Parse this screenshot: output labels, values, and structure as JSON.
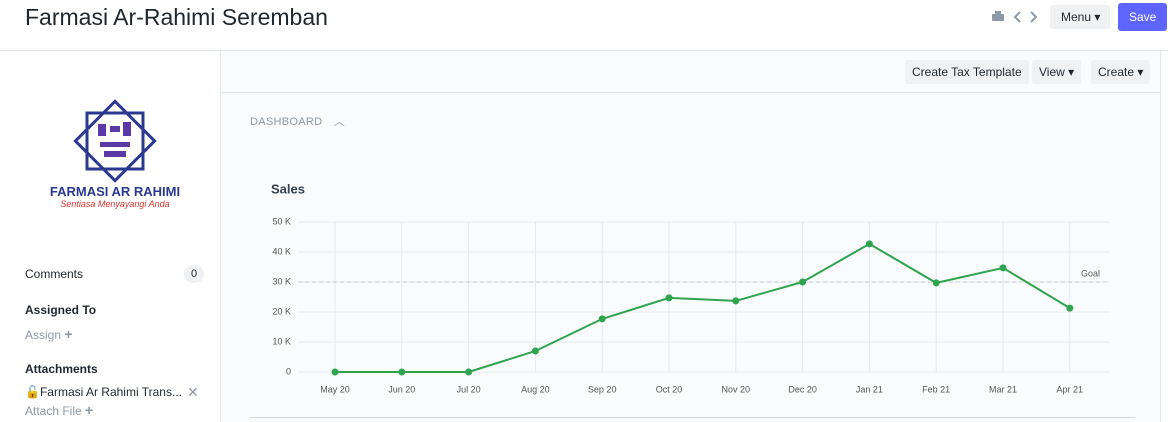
{
  "header": {
    "title": "Farmasi Ar-Rahimi Seremban",
    "menu_button": "Menu",
    "save_button": "Save"
  },
  "sidebar": {
    "logo_name": "FARMASI AR RAHIMI",
    "logo_tagline": "Sentiasa Menyayangi Anda",
    "comments_label": "Comments",
    "comments_count": 0,
    "assigned_label": "Assigned To",
    "assign_link": "Assign",
    "attachments_label": "Attachments",
    "attachment_file": "Farmasi Ar Rahimi Trans...",
    "attach_link": "Attach File"
  },
  "toolbar": {
    "create_tax_template": "Create Tax Template",
    "view": "View",
    "create": "Create"
  },
  "dashboard_label": "DASHBOARD",
  "chart_data": {
    "type": "line",
    "title": "Sales",
    "categories": [
      "May 20",
      "Jun 20",
      "Jul 20",
      "Aug 20",
      "Sep 20",
      "Oct 20",
      "Nov 20",
      "Dec 20",
      "Jan 21",
      "Feb 21",
      "Mar 21",
      "Apr 21"
    ],
    "values": [
      0,
      0,
      0,
      7000,
      17700,
      24700,
      23700,
      30000,
      42700,
      29700,
      34700,
      21300
    ],
    "color": "#2ea44f",
    "ylim": [
      0,
      50000
    ],
    "yticks": [
      0,
      {
        "value": 10000,
        "label": "10 K"
      },
      {
        "value": 20000,
        "label": "20 K"
      },
      {
        "value": 30000,
        "label": "30 K"
      },
      {
        "value": 40000,
        "label": "40 K"
      },
      {
        "value": 50000,
        "label": "50 K"
      }
    ],
    "grid": true,
    "goal": {
      "value": 30000,
      "label": "Goal"
    }
  }
}
